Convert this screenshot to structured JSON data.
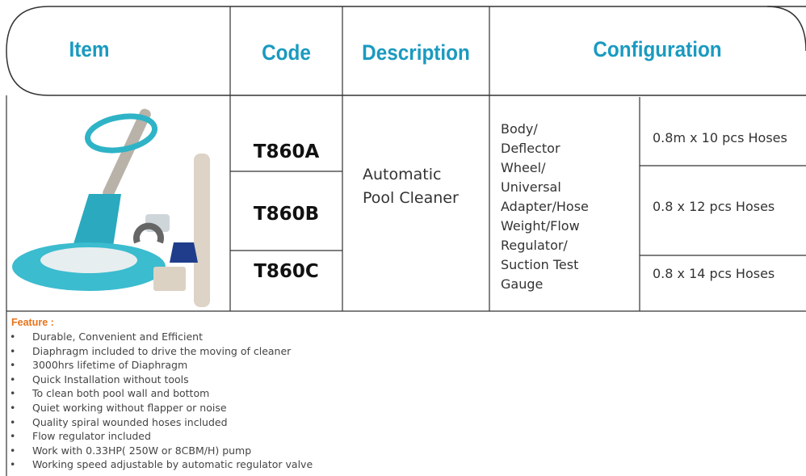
{
  "header": {
    "columns": [
      "Item",
      "Code",
      "Description",
      "Configuration"
    ]
  },
  "table": {
    "rows": [
      {
        "code": "T860A",
        "configuration": "0.8m x 10 pcs Hoses"
      },
      {
        "code": "T860B",
        "configuration": "0.8 x 12 pcs Hoses"
      },
      {
        "code": "T860C",
        "configuration": "0.8 x 14 pcs Hoses"
      }
    ],
    "description": [
      "Automatic",
      "Pool Cleaner"
    ],
    "parts": [
      "Body/",
      "Deflector",
      "Wheel/",
      "Universal",
      "Adapter/Hose",
      "Weight/Flow",
      "Regulator/",
      "Suction Test",
      "Gauge"
    ]
  },
  "features": {
    "title": "Feature :",
    "items": [
      "Durable, Convenient and Efficient",
      "Diaphragm included to drive the moving of cleaner",
      "3000hrs lifetime of Diaphragm",
      "Quick Installation without tools",
      "To clean both pool wall and bottom",
      "Quiet working without flapper or noise",
      "Quality spiral wounded hoses included",
      "Flow regulator included",
      "Work with 0.33HP( 250W or 8CBM/H) pump",
      "Working speed adjustable by automatic regulator valve"
    ]
  }
}
